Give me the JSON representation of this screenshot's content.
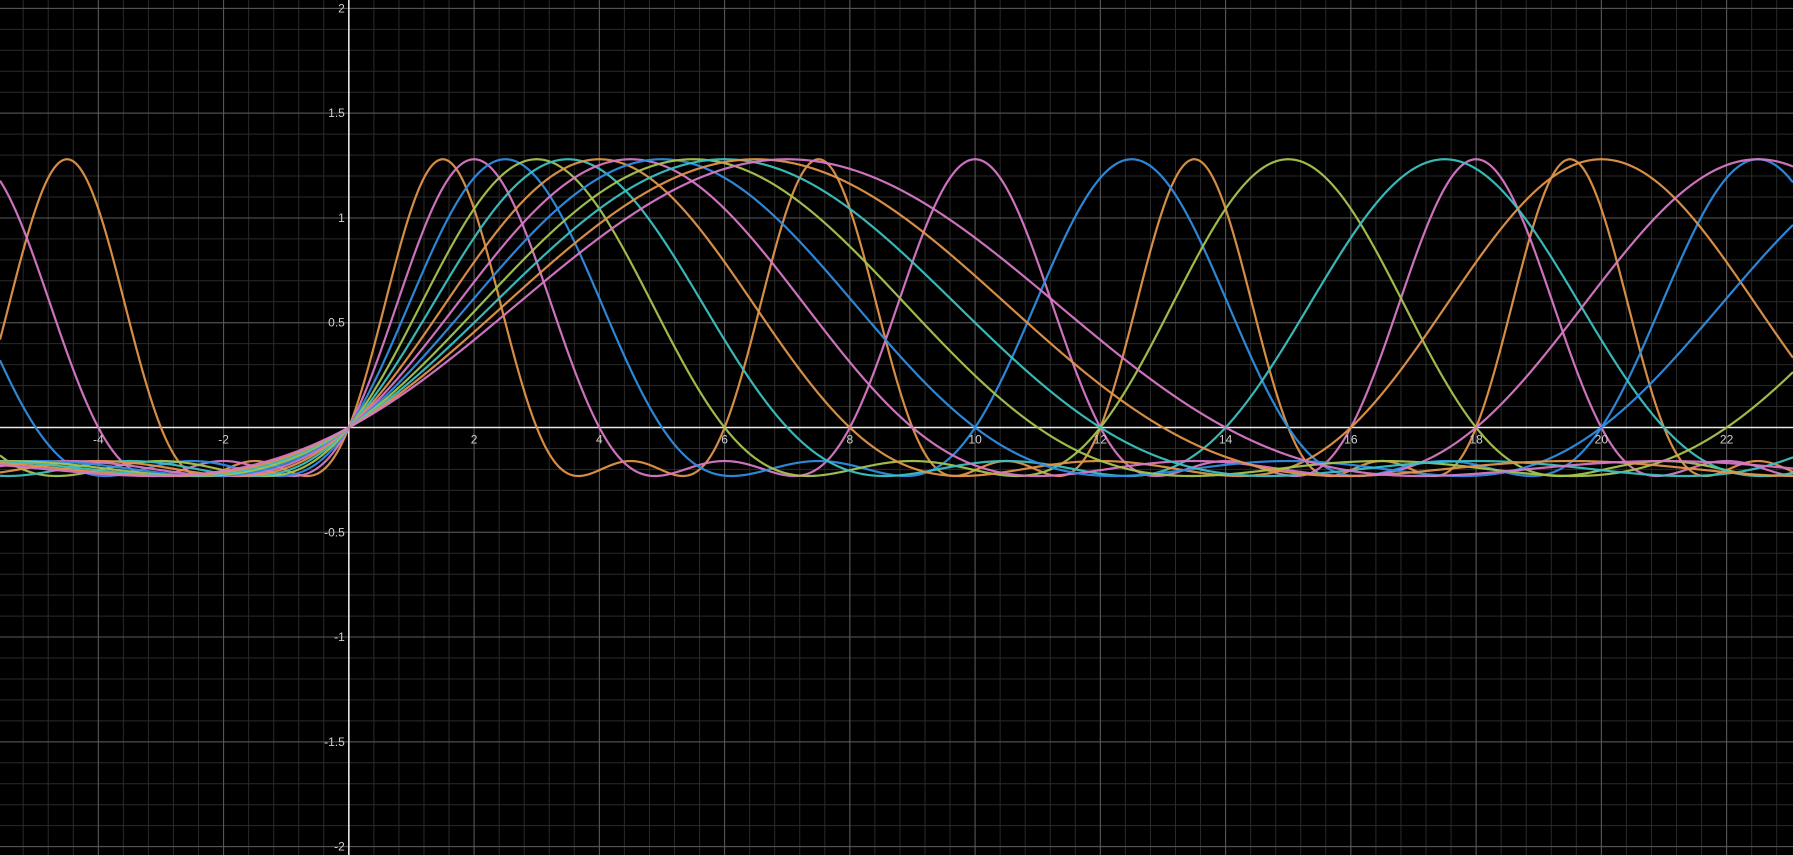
{
  "chart_data": {
    "type": "line",
    "title": "",
    "xlabel": "",
    "ylabel": "",
    "xlim": [
      -5.57,
      23.06
    ],
    "ylim": [
      -2.04,
      2.04
    ],
    "grid": true,
    "background": "#000000",
    "x_ticks": [
      {
        "value": -4,
        "label": "-4"
      },
      {
        "value": -2,
        "label": "-2"
      },
      {
        "value": 2,
        "label": "2"
      },
      {
        "value": 4,
        "label": "4"
      },
      {
        "value": 6,
        "label": "6"
      },
      {
        "value": 8,
        "label": "8"
      },
      {
        "value": 10,
        "label": "10"
      },
      {
        "value": 12,
        "label": "12"
      },
      {
        "value": 14,
        "label": "14"
      },
      {
        "value": 16,
        "label": "16"
      },
      {
        "value": 18,
        "label": "18"
      },
      {
        "value": 20,
        "label": "20"
      },
      {
        "value": 22,
        "label": "22"
      }
    ],
    "y_ticks": [
      {
        "value": 2,
        "label": "2"
      },
      {
        "value": 1.5,
        "label": "1.5"
      },
      {
        "value": 1,
        "label": "1"
      },
      {
        "value": 0.5,
        "label": "0.5"
      },
      {
        "value": -0.5,
        "label": "-0.5"
      },
      {
        "value": -1,
        "label": "-1"
      },
      {
        "value": -1.5,
        "label": "-1.5"
      },
      {
        "value": -2,
        "label": "-2"
      }
    ],
    "series_formula": "y = 0.72*sin(pi*x/p) + 0.28*(1 - cos(2*pi*x/p))",
    "series": [
      {
        "period": 3,
        "color": "#e0954a"
      },
      {
        "period": 4,
        "color": "#d778c6"
      },
      {
        "period": 5,
        "color": "#2f8de0"
      },
      {
        "period": 6,
        "color": "#a7c44f"
      },
      {
        "period": 7,
        "color": "#3cc0c0"
      },
      {
        "period": 8,
        "color": "#e0954a"
      },
      {
        "period": 9,
        "color": "#d778c6"
      },
      {
        "period": 10,
        "color": "#2f8de0"
      },
      {
        "period": 11,
        "color": "#a7c44f"
      },
      {
        "period": 12,
        "color": "#3cc0c0"
      },
      {
        "period": 13,
        "color": "#e0954a"
      },
      {
        "period": 14,
        "color": "#d778c6"
      }
    ]
  }
}
